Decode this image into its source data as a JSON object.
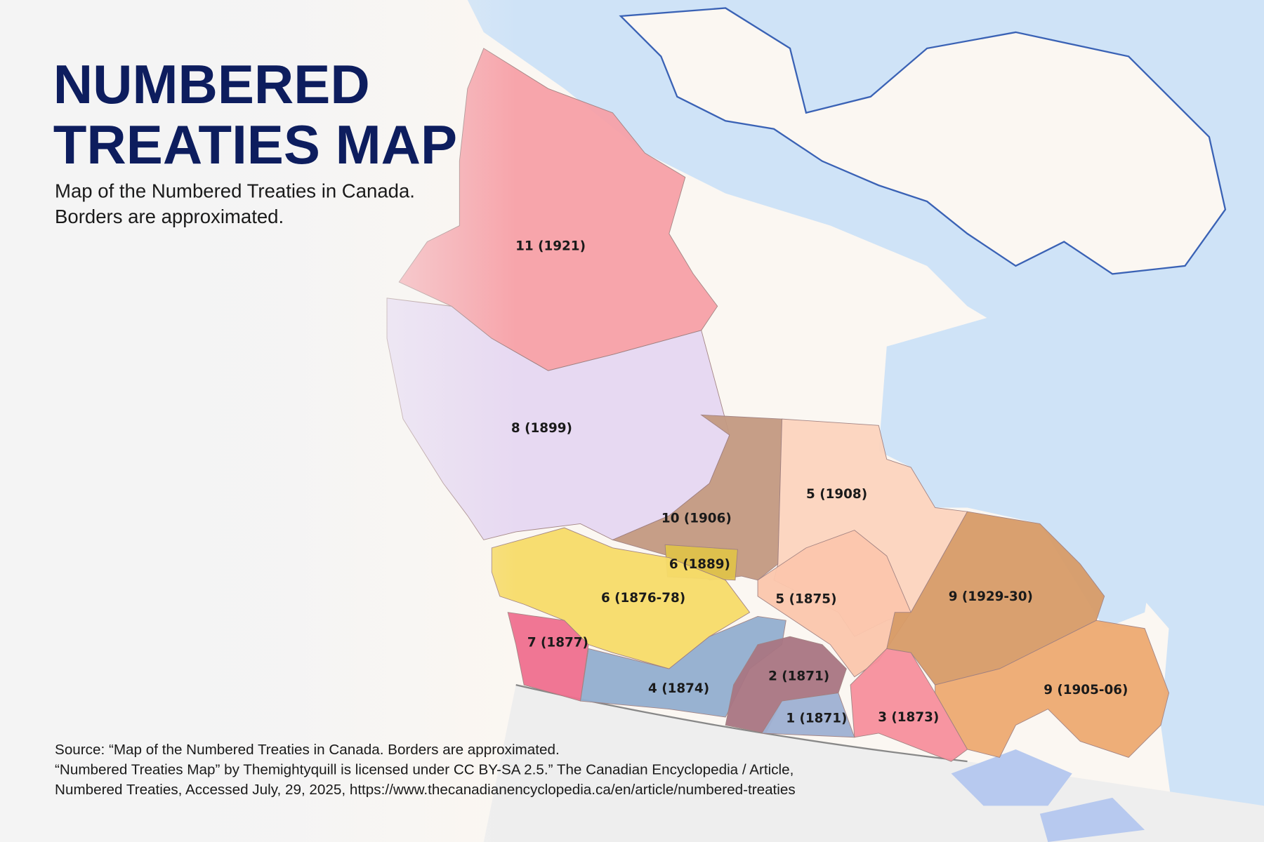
{
  "title_lines": [
    "NUMBERED",
    "TREATIES MAP"
  ],
  "subtitle_lines": [
    "Map of the Numbered Treaties in Canada.",
    "Borders are approximated."
  ],
  "regions": [
    {
      "label": "11 (1921)"
    },
    {
      "label": "8 (1899)"
    },
    {
      "label": "10 (1906)"
    },
    {
      "label": "5 (1908)"
    },
    {
      "label": "6 (1889)"
    },
    {
      "label": "6 (1876-78)"
    },
    {
      "label": "5 (1875)"
    },
    {
      "label": "9 (1929-30)"
    },
    {
      "label": "7 (1877)"
    },
    {
      "label": "4 (1874)"
    },
    {
      "label": "2 (1871)"
    },
    {
      "label": "9 (1905-06)"
    },
    {
      "label": "1 (1871)"
    },
    {
      "label": "3 (1873)"
    }
  ],
  "source_lines": [
    "Source: “Map of the Numbered Treaties in Canada. Borders are approximated.",
    "“Numbered Treaties Map” by Themightyquill is licensed under CC BY-SA 2.5.” The Canadian Encyclopedia / Article,",
    "Numbered Treaties,  Accessed July, 29, 2025, https://www.thecanadianencyclopedia.ca/en/article/numbered-treaties"
  ]
}
